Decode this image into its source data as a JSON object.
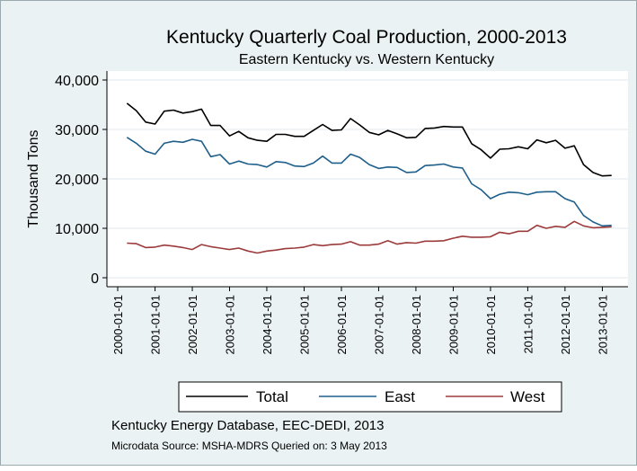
{
  "chart_data": {
    "type": "line",
    "title": "Kentucky Quarterly Coal Production, 2000-2013",
    "subtitle": "Eastern Kentucky vs. Western Kentucky",
    "ylabel": "Thousand Tons",
    "xlabel": "",
    "ylim": [
      0,
      40000
    ],
    "yticks": [
      0,
      10000,
      20000,
      30000,
      40000
    ],
    "ytick_labels": [
      "0",
      "10,000",
      "20,000",
      "30,000",
      "40,000"
    ],
    "xtick_labels": [
      "2000-01-01",
      "2001-01-01",
      "2002-01-01",
      "2003-01-01",
      "2004-01-01",
      "2005-01-01",
      "2006-01-01",
      "2007-01-01",
      "2008-01-01",
      "2009-01-01",
      "2010-01-01",
      "2011-01-01",
      "2012-01-01",
      "2013-01-01"
    ],
    "xlim": [
      "2000-01-01",
      "2013-07-01"
    ],
    "grid": "horizontal",
    "legend_position": "bottom",
    "x": [
      "2000-04-01",
      "2000-07-01",
      "2000-10-01",
      "2001-01-01",
      "2001-04-01",
      "2001-07-01",
      "2001-10-01",
      "2002-01-01",
      "2002-04-01",
      "2002-07-01",
      "2002-10-01",
      "2003-01-01",
      "2003-04-01",
      "2003-07-01",
      "2003-10-01",
      "2004-01-01",
      "2004-04-01",
      "2004-07-01",
      "2004-10-01",
      "2005-01-01",
      "2005-04-01",
      "2005-07-01",
      "2005-10-01",
      "2006-01-01",
      "2006-04-01",
      "2006-07-01",
      "2006-10-01",
      "2007-01-01",
      "2007-04-01",
      "2007-07-01",
      "2007-10-01",
      "2008-01-01",
      "2008-04-01",
      "2008-07-01",
      "2008-10-01",
      "2009-01-01",
      "2009-04-01",
      "2009-07-01",
      "2009-10-01",
      "2010-01-01",
      "2010-04-01",
      "2010-07-01",
      "2010-10-01",
      "2011-01-01",
      "2011-04-01",
      "2011-07-01",
      "2011-10-01",
      "2012-01-01",
      "2012-04-01",
      "2012-07-01",
      "2012-10-01",
      "2013-01-01",
      "2013-04-01"
    ],
    "series": [
      {
        "name": "Total",
        "color": "#000000",
        "values": [
          35300,
          33800,
          31500,
          31100,
          33700,
          33900,
          33300,
          33600,
          34100,
          30800,
          30800,
          28700,
          29600,
          28300,
          27800,
          27600,
          29000,
          29000,
          28600,
          28600,
          29800,
          31000,
          29800,
          29900,
          32200,
          30900,
          29400,
          28900,
          29800,
          29100,
          28300,
          28400,
          30200,
          30300,
          30600,
          30500,
          30500,
          27100,
          25900,
          24200,
          26000,
          26100,
          26500,
          26100,
          27900,
          27300,
          27800,
          26200,
          26700,
          22900,
          21300,
          20600,
          20700
        ]
      },
      {
        "name": "East",
        "color": "#1f5f8b",
        "values": [
          28400,
          27200,
          25600,
          25000,
          27200,
          27600,
          27400,
          28000,
          27600,
          24500,
          24900,
          23000,
          23600,
          23000,
          22900,
          22400,
          23500,
          23300,
          22600,
          22500,
          23200,
          24600,
          23200,
          23200,
          25000,
          24300,
          22900,
          22100,
          22400,
          22300,
          21300,
          21400,
          22700,
          22800,
          23000,
          22400,
          22200,
          19000,
          17800,
          16000,
          16900,
          17300,
          17200,
          16800,
          17300,
          17400,
          17400,
          16000,
          15300,
          12600,
          11300,
          10500,
          10600
        ]
      },
      {
        "name": "West",
        "color": "#9c3b3b",
        "values": [
          7000,
          6900,
          6100,
          6200,
          6600,
          6400,
          6100,
          5700,
          6700,
          6300,
          6000,
          5700,
          6000,
          5400,
          5000,
          5400,
          5600,
          5900,
          6000,
          6200,
          6700,
          6500,
          6700,
          6800,
          7300,
          6600,
          6600,
          6800,
          7500,
          6800,
          7100,
          7000,
          7400,
          7400,
          7500,
          8000,
          8400,
          8200,
          8200,
          8300,
          9200,
          8900,
          9400,
          9400,
          10600,
          10000,
          10400,
          10200,
          11400,
          10500,
          10100,
          10200,
          10300
        ]
      }
    ]
  },
  "legend": {
    "total": "Total",
    "east": "East",
    "west": "West"
  },
  "notes": {
    "line1": "Kentucky Energy Database, EEC-DEDI, 2013",
    "line2": "Microdata Source: MSHA-MDRS Queried on: 3 May 2013"
  }
}
